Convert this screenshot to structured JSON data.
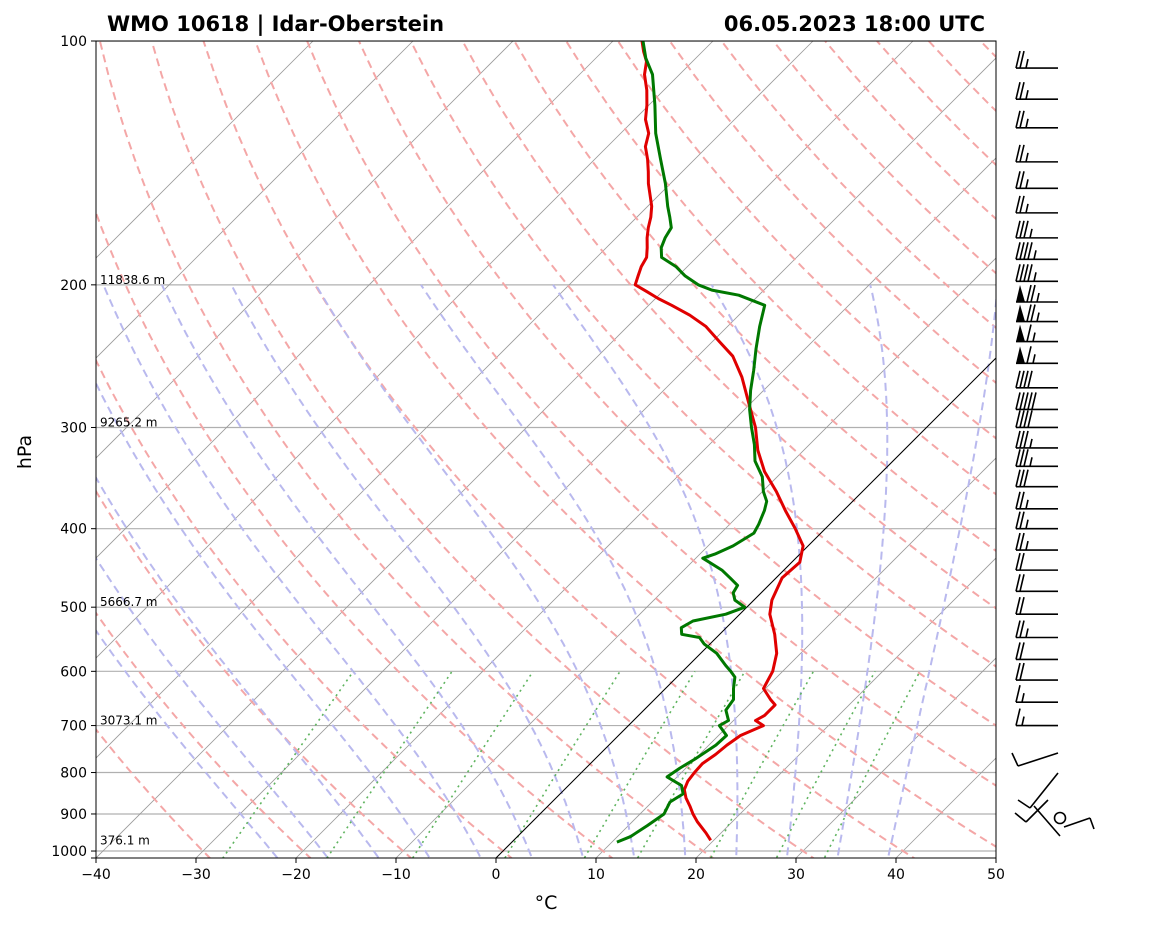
{
  "header": {
    "station": "WMO 10618 | Idar-Oberstein",
    "datetime": "06.05.2023 18:00 UTC"
  },
  "chart_data": {
    "type": "line",
    "title_left": "WMO 10618 | Idar-Oberstein",
    "title_right": "06.05.2023 18:00 UTC",
    "xlabel": "°C",
    "ylabel": "hPa",
    "xlim": [
      -40,
      50
    ],
    "ylim": [
      1020,
      100
    ],
    "y_scale": "log",
    "skew": "45°",
    "grid": true,
    "x_ticks": [
      "−40",
      "−30",
      "−20",
      "−10",
      "0",
      "10",
      "20",
      "30",
      "40",
      "50"
    ],
    "x_tick_values": [
      -40,
      -30,
      -20,
      -10,
      0,
      10,
      20,
      30,
      40,
      50
    ],
    "y_ticks": [
      "100",
      "200",
      "300",
      "400",
      "500",
      "600",
      "700",
      "800",
      "900",
      "1000"
    ],
    "y_tick_values": [
      100,
      200,
      300,
      400,
      500,
      600,
      700,
      800,
      900,
      1000
    ],
    "height_labels": [
      {
        "p": 200,
        "text": "11838.6 m"
      },
      {
        "p": 300,
        "text": "9265.2 m"
      },
      {
        "p": 500,
        "text": "5666.7 m"
      },
      {
        "p": 700,
        "text": "3073.1 m"
      },
      {
        "p": 985,
        "text": "376.1 m"
      }
    ],
    "series": [
      {
        "role": "temperature",
        "color": "#e00000",
        "points": [
          [
            970,
            19.7
          ],
          [
            950,
            18.5
          ],
          [
            920,
            16.5
          ],
          [
            900,
            15.3
          ],
          [
            880,
            14.2
          ],
          [
            860,
            13.0
          ],
          [
            840,
            12.0
          ],
          [
            820,
            11.5
          ],
          [
            800,
            11.3
          ],
          [
            780,
            11.2
          ],
          [
            760,
            11.6
          ],
          [
            740,
            11.8
          ],
          [
            720,
            12.2
          ],
          [
            700,
            13.5
          ],
          [
            690,
            12.2
          ],
          [
            680,
            12.6
          ],
          [
            660,
            12.6
          ],
          [
            650,
            11.6
          ],
          [
            630,
            9.8
          ],
          [
            600,
            9.0
          ],
          [
            570,
            7.6
          ],
          [
            540,
            5.5
          ],
          [
            510,
            3.0
          ],
          [
            490,
            1.8
          ],
          [
            460,
            0.6
          ],
          [
            440,
            0.8
          ],
          [
            420,
            -0.5
          ],
          [
            400,
            -3.0
          ],
          [
            380,
            -5.8
          ],
          [
            360,
            -8.6
          ],
          [
            340,
            -11.8
          ],
          [
            320,
            -14.6
          ],
          [
            300,
            -17.1
          ],
          [
            280,
            -20.2
          ],
          [
            260,
            -23.5
          ],
          [
            245,
            -26.5
          ],
          [
            235,
            -29.3
          ],
          [
            225,
            -32.2
          ],
          [
            218,
            -34.9
          ],
          [
            212,
            -37.7
          ],
          [
            208,
            -39.7
          ],
          [
            204,
            -41.5
          ],
          [
            200,
            -43.4
          ],
          [
            195,
            -44.0
          ],
          [
            190,
            -44.6
          ],
          [
            185,
            -45.0
          ],
          [
            180,
            -45.9
          ],
          [
            175,
            -46.9
          ],
          [
            170,
            -47.8
          ],
          [
            165,
            -48.6
          ],
          [
            160,
            -49.6
          ],
          [
            150,
            -52.2
          ],
          [
            145,
            -53.4
          ],
          [
            140,
            -54.7
          ],
          [
            135,
            -56.2
          ],
          [
            130,
            -57.2
          ],
          [
            125,
            -58.9
          ],
          [
            120,
            -60.2
          ],
          [
            115,
            -61.7
          ],
          [
            110,
            -63.5
          ],
          [
            106,
            -64.6
          ],
          [
            103,
            -65.9
          ],
          [
            100,
            -67.1
          ]
        ]
      },
      {
        "role": "dewpoint",
        "color": "#007800",
        "points": [
          [
            975,
            10.5
          ],
          [
            960,
            11.3
          ],
          [
            930,
            11.9
          ],
          [
            900,
            12.4
          ],
          [
            870,
            11.8
          ],
          [
            850,
            12.3
          ],
          [
            830,
            11.3
          ],
          [
            810,
            9.0
          ],
          [
            790,
            9.4
          ],
          [
            770,
            10.0
          ],
          [
            740,
            10.7
          ],
          [
            720,
            10.8
          ],
          [
            700,
            9.1
          ],
          [
            690,
            9.5
          ],
          [
            670,
            8.2
          ],
          [
            650,
            7.9
          ],
          [
            630,
            6.8
          ],
          [
            610,
            5.8
          ],
          [
            600,
            4.8
          ],
          [
            590,
            3.7
          ],
          [
            570,
            1.6
          ],
          [
            555,
            -0.6
          ],
          [
            545,
            -1.7
          ],
          [
            540,
            -3.8
          ],
          [
            530,
            -4.5
          ],
          [
            520,
            -4.0
          ],
          [
            510,
            -1.4
          ],
          [
            500,
            -0.2
          ],
          [
            490,
            -1.9
          ],
          [
            480,
            -2.8
          ],
          [
            470,
            -3.1
          ],
          [
            460,
            -4.6
          ],
          [
            450,
            -6.2
          ],
          [
            435,
            -9.3
          ],
          [
            430,
            -8.5
          ],
          [
            420,
            -7.5
          ],
          [
            405,
            -6.7
          ],
          [
            395,
            -7.1
          ],
          [
            380,
            -7.9
          ],
          [
            370,
            -8.6
          ],
          [
            360,
            -9.9
          ],
          [
            345,
            -11.5
          ],
          [
            330,
            -13.8
          ],
          [
            315,
            -15.5
          ],
          [
            300,
            -17.5
          ],
          [
            285,
            -19.5
          ],
          [
            270,
            -21.3
          ],
          [
            255,
            -23.0
          ],
          [
            240,
            -24.9
          ],
          [
            225,
            -26.8
          ],
          [
            212,
            -28.4
          ],
          [
            206,
            -32.0
          ],
          [
            203,
            -35.2
          ],
          [
            200,
            -37.1
          ],
          [
            195,
            -39.3
          ],
          [
            190,
            -41.1
          ],
          [
            185,
            -43.5
          ],
          [
            180,
            -44.5
          ],
          [
            175,
            -45.1
          ],
          [
            170,
            -45.5
          ],
          [
            165,
            -46.7
          ],
          [
            160,
            -48.0
          ],
          [
            150,
            -50.5
          ],
          [
            140,
            -53.4
          ],
          [
            130,
            -56.5
          ],
          [
            120,
            -59.4
          ],
          [
            110,
            -62.7
          ],
          [
            105,
            -65.0
          ],
          [
            100,
            -67.0
          ]
        ]
      }
    ],
    "wind_barbs": [
      {
        "p": 108,
        "shape": "||."
      },
      {
        "p": 118,
        "shape": "||."
      },
      {
        "p": 128,
        "shape": "||."
      },
      {
        "p": 141,
        "shape": "||."
      },
      {
        "p": 152,
        "shape": "||."
      },
      {
        "p": 163,
        "shape": "||."
      },
      {
        "p": 175,
        "shape": "|||."
      },
      {
        "p": 186,
        "shape": "||||."
      },
      {
        "p": 198,
        "shape": "||||."
      },
      {
        "p": 210,
        "shape": "F||."
      },
      {
        "p": 222,
        "shape": "F||."
      },
      {
        "p": 235,
        "shape": "F|."
      },
      {
        "p": 250,
        "shape": "F|."
      },
      {
        "p": 268,
        "shape": "||||"
      },
      {
        "p": 285,
        "shape": "|||||"
      },
      {
        "p": 300,
        "shape": "||||"
      },
      {
        "p": 318,
        "shape": "|||."
      },
      {
        "p": 335,
        "shape": "|||."
      },
      {
        "p": 355,
        "shape": "|||"
      },
      {
        "p": 378,
        "shape": "||."
      },
      {
        "p": 400,
        "shape": "||."
      },
      {
        "p": 425,
        "shape": "||."
      },
      {
        "p": 450,
        "shape": "||"
      },
      {
        "p": 478,
        "shape": "||"
      },
      {
        "p": 510,
        "shape": "||"
      },
      {
        "p": 545,
        "shape": "||."
      },
      {
        "p": 580,
        "shape": "||"
      },
      {
        "p": 615,
        "shape": "||"
      },
      {
        "p": 655,
        "shape": "|."
      },
      {
        "p": 700,
        "shape": "|."
      }
    ]
  }
}
